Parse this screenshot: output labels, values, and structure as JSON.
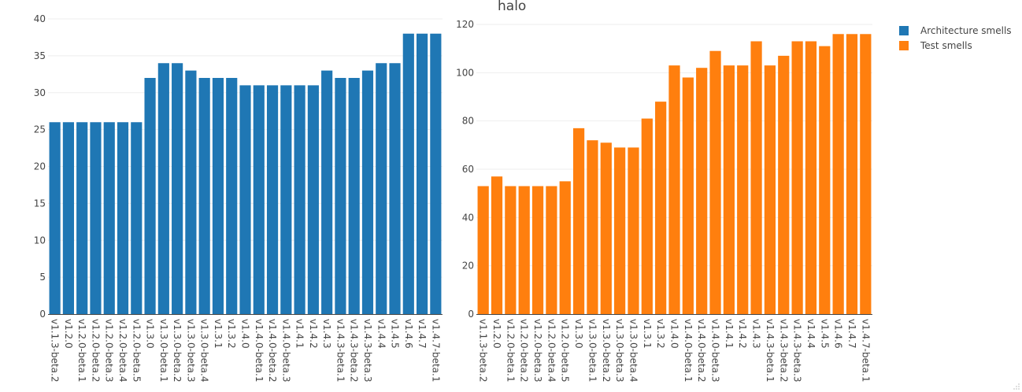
{
  "chart_data": [
    {
      "type": "bar",
      "title": "",
      "xlabel": "",
      "ylabel": "",
      "ylim": [
        0,
        40
      ],
      "yticks": [
        "0",
        "5",
        "10",
        "15",
        "20",
        "25",
        "30",
        "35",
        "40"
      ],
      "categories": [
        "v1.1.3-beta.2",
        "v1.2.0",
        "v1.2.0-beta.1",
        "v1.2.0-beta.2",
        "v1.2.0-beta.3",
        "v1.2.0-beta.4",
        "v1.2.0-beta.5",
        "v1.3.0",
        "v1.3.0-beta.1",
        "v1.3.0-beta.2",
        "v1.3.0-beta.3",
        "v1.3.0-beta.4",
        "v1.3.1",
        "v1.3.2",
        "v1.4.0",
        "v1.4.0-beta.1",
        "v1.4.0-beta.2",
        "v1.4.0-beta.3",
        "v1.4.1",
        "v1.4.2",
        "v1.4.3",
        "v1.4.3-beta.1",
        "v1.4.3-beta.2",
        "v1.4.3-beta.3",
        "v1.4.4",
        "v1.4.5",
        "v1.4.6",
        "v1.4.7",
        "v1.4.7-beta.1"
      ],
      "series": [
        {
          "name": "Architecture smells",
          "color": "#1f77b4",
          "values": [
            26,
            26,
            26,
            26,
            26,
            26,
            26,
            32,
            34,
            34,
            33,
            32,
            32,
            32,
            31,
            31,
            31,
            31,
            31,
            31,
            33,
            32,
            32,
            33,
            34,
            34,
            38,
            38,
            38
          ]
        }
      ],
      "grid": true
    },
    {
      "type": "bar",
      "title": "halo",
      "xlabel": "",
      "ylabel": "",
      "ylim": [
        0,
        120
      ],
      "yticks": [
        "0",
        "20",
        "40",
        "60",
        "80",
        "100",
        "120"
      ],
      "categories": [
        "v1.1.3-beta.2",
        "v1.2.0",
        "v1.2.0-beta.1",
        "v1.2.0-beta.2",
        "v1.2.0-beta.3",
        "v1.2.0-beta.4",
        "v1.2.0-beta.5",
        "v1.3.0",
        "v1.3.0-beta.1",
        "v1.3.0-beta.2",
        "v1.3.0-beta.3",
        "v1.3.0-beta.4",
        "v1.3.1",
        "v1.3.2",
        "v1.4.0",
        "v1.4.0-beta.1",
        "v1.4.0-beta.2",
        "v1.4.0-beta.3",
        "v1.4.1",
        "v1.4.2",
        "v1.4.3",
        "v1.4.3-beta.1",
        "v1.4.3-beta.2",
        "v1.4.3-beta.3",
        "v1.4.4",
        "v1.4.5",
        "v1.4.6",
        "v1.4.7",
        "v1.4.7-beta.1"
      ],
      "series": [
        {
          "name": "Test smells",
          "color": "#ff7f0e",
          "values": [
            53,
            57,
            53,
            53,
            53,
            53,
            55,
            77,
            72,
            71,
            69,
            69,
            81,
            88,
            103,
            98,
            102,
            109,
            103,
            103,
            113,
            103,
            107,
            113,
            113,
            111,
            116,
            116,
            116
          ]
        }
      ],
      "grid": true
    }
  ],
  "legend": {
    "placement": "top-right",
    "items": [
      {
        "label": "Architecture smells",
        "color": "#1f77b4"
      },
      {
        "label": "Test smells",
        "color": "#ff7f0e"
      }
    ]
  }
}
